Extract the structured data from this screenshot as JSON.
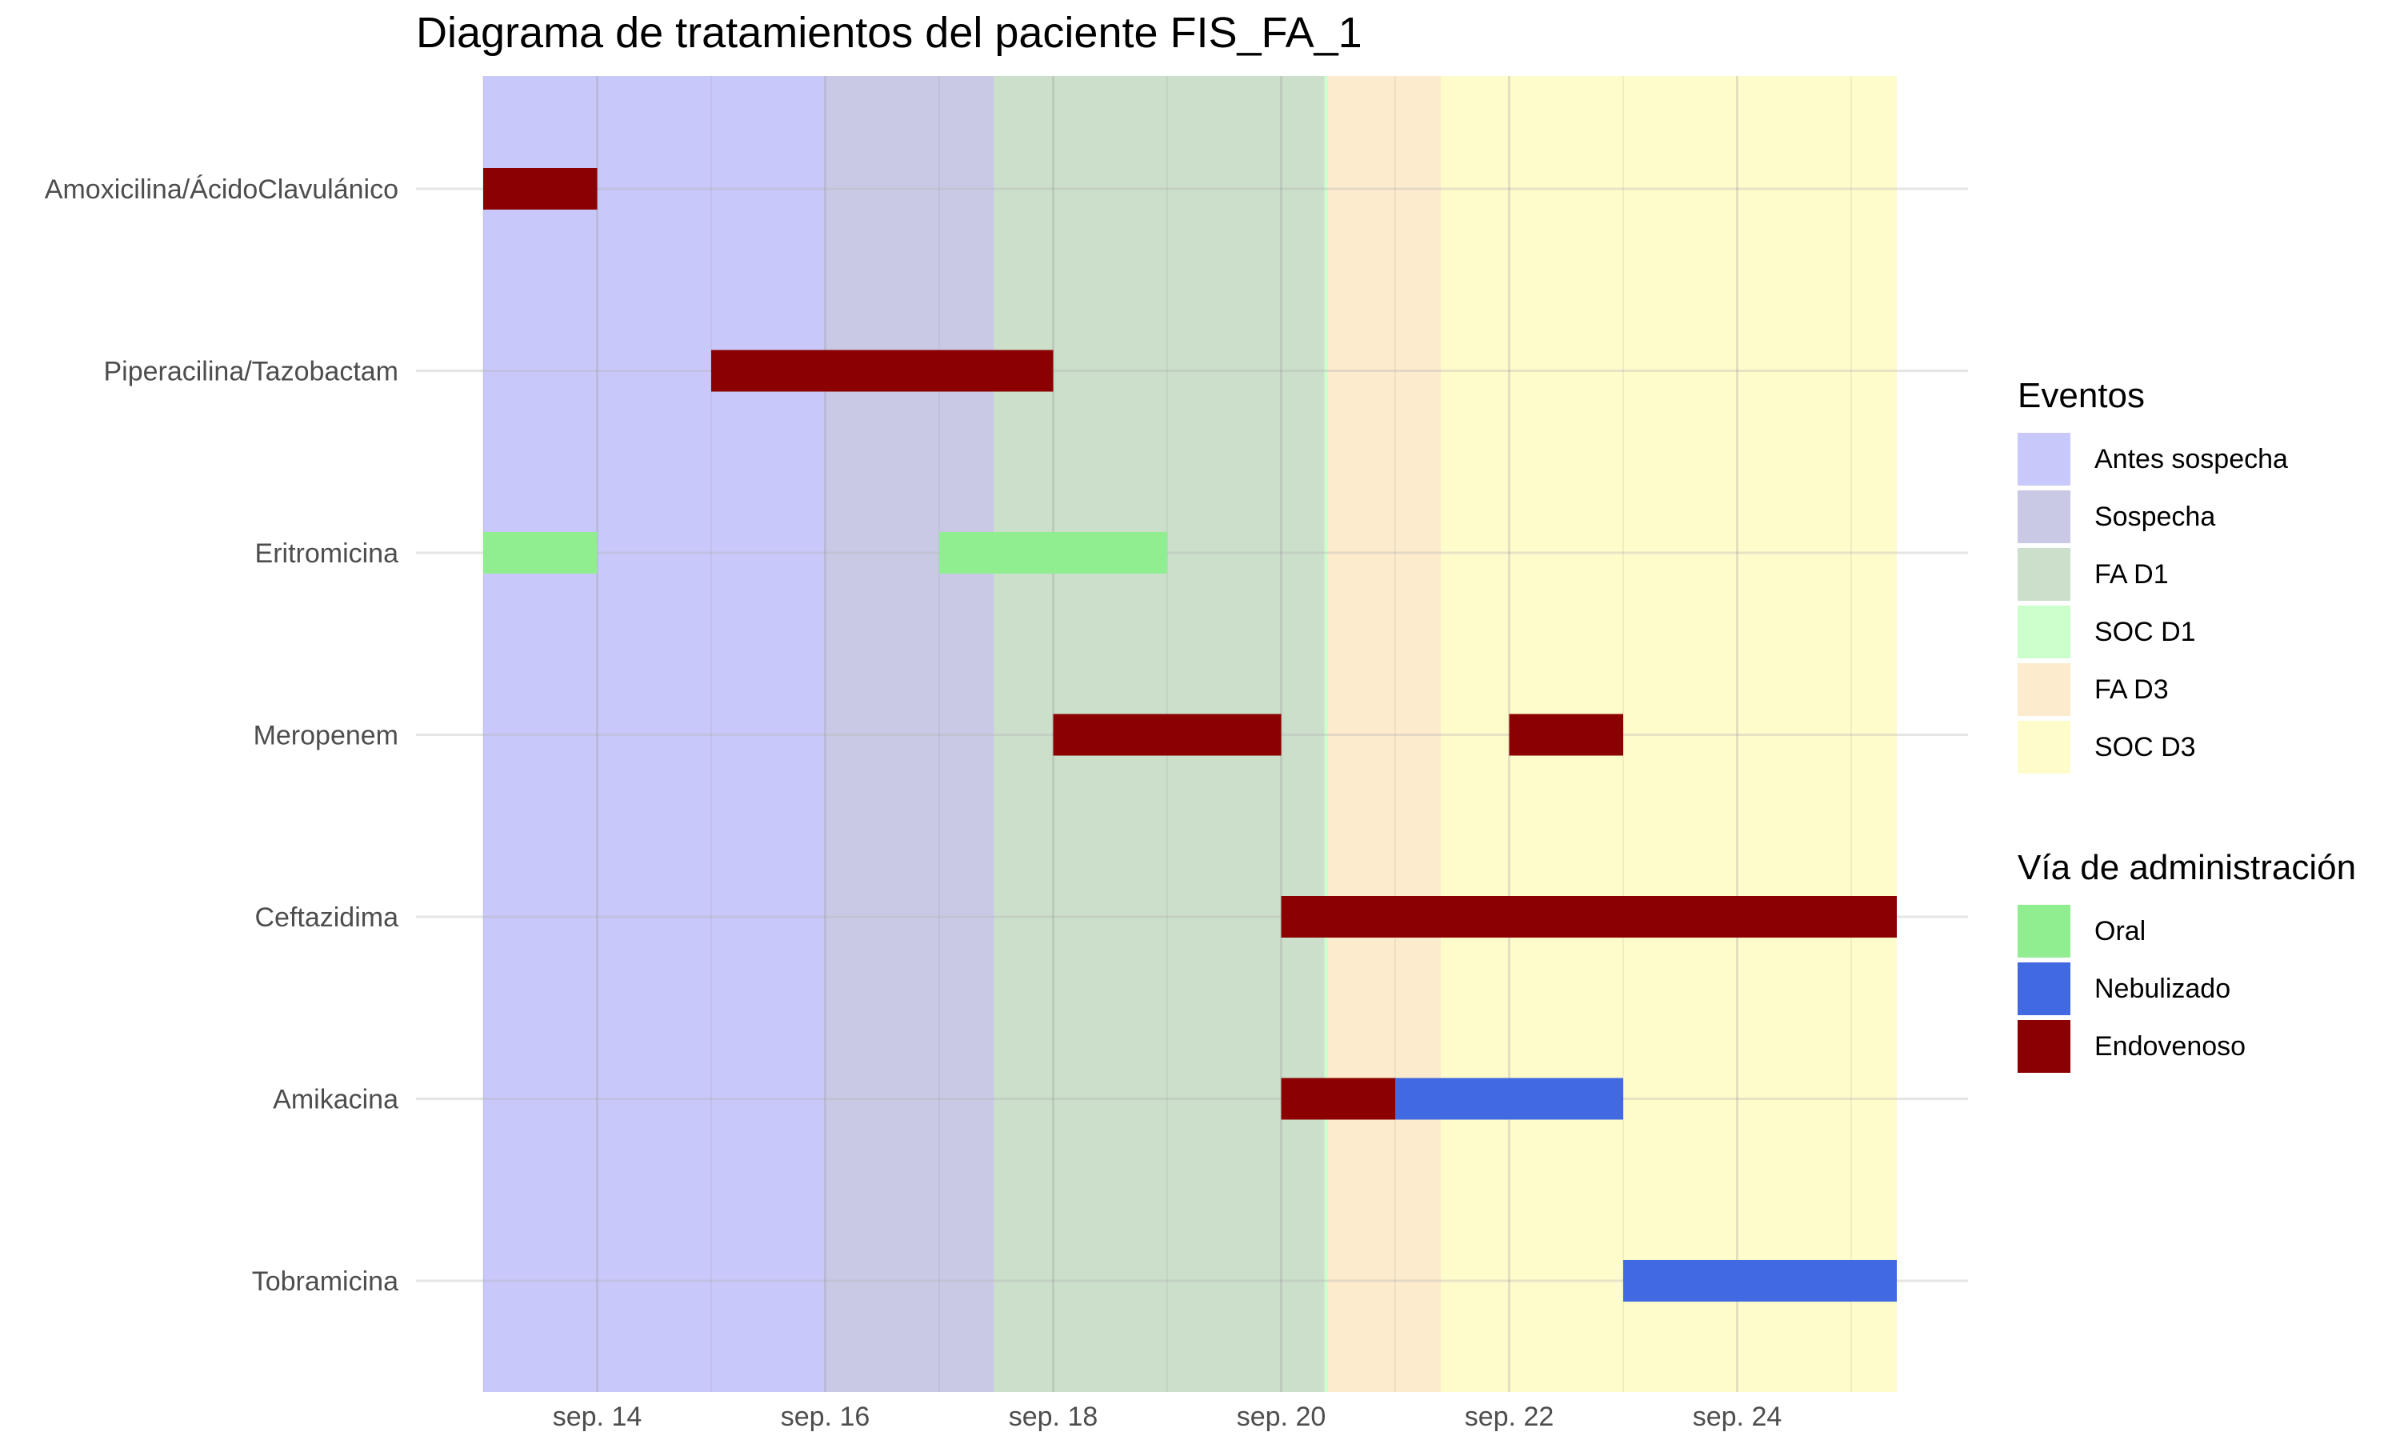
{
  "chart_data": {
    "type": "gantt",
    "title": "Diagrama de tratamientos del paciente FIS_FA_1",
    "x_axis": {
      "unit": "day of September",
      "range": [
        13.0,
        25.4
      ],
      "ticks": [
        {
          "value": 14,
          "label": "sep. 14"
        },
        {
          "value": 16,
          "label": "sep. 16"
        },
        {
          "value": 18,
          "label": "sep. 18"
        },
        {
          "value": 20,
          "label": "sep. 20"
        },
        {
          "value": 22,
          "label": "sep. 22"
        },
        {
          "value": 24,
          "label": "sep. 24"
        }
      ]
    },
    "categories": [
      "Amoxicilina/ÁcidoClavulánico",
      "Piperacilina/Tazobactam",
      "Eritromicina",
      "Meropenem",
      "Ceftazidima",
      "Amikacina",
      "Tobramicina"
    ],
    "events": [
      {
        "name": "Antes sospecha",
        "start": 13.0,
        "end": 16.0,
        "color": "#c8c8fa"
      },
      {
        "name": "Sospecha",
        "start": 16.0,
        "end": 17.48,
        "color": "#c9c9e6"
      },
      {
        "name": "FA D1",
        "start": 17.48,
        "end": 20.38,
        "color": "#cbdfcb"
      },
      {
        "name": "SOC D1",
        "start": 20.38,
        "end": 20.41,
        "color": "#ccffcc"
      },
      {
        "name": "FA D3",
        "start": 20.41,
        "end": 21.4,
        "color": "#fcebcc"
      },
      {
        "name": "SOC D3",
        "start": 21.4,
        "end": 25.4,
        "color": "#fffccc"
      }
    ],
    "routes": [
      {
        "name": "Oral",
        "color": "#90ee90"
      },
      {
        "name": "Nebulizado",
        "color": "#4169e1"
      },
      {
        "name": "Endovenoso",
        "color": "#8b0000"
      }
    ],
    "treatments": [
      {
        "drug": "Amoxicilina/ÁcidoClavulánico",
        "route": "Endovenoso",
        "start": 13.0,
        "end": 14.0
      },
      {
        "drug": "Piperacilina/Tazobactam",
        "route": "Endovenoso",
        "start": 15.0,
        "end": 18.0
      },
      {
        "drug": "Eritromicina",
        "route": "Oral",
        "start": 13.0,
        "end": 14.0
      },
      {
        "drug": "Eritromicina",
        "route": "Oral",
        "start": 17.0,
        "end": 19.0
      },
      {
        "drug": "Meropenem",
        "route": "Endovenoso",
        "start": 18.0,
        "end": 20.0
      },
      {
        "drug": "Meropenem",
        "route": "Endovenoso",
        "start": 22.0,
        "end": 23.0
      },
      {
        "drug": "Ceftazidima",
        "route": "Endovenoso",
        "start": 20.0,
        "end": 25.4
      },
      {
        "drug": "Amikacina",
        "route": "Endovenoso",
        "start": 20.0,
        "end": 21.0
      },
      {
        "drug": "Amikacina",
        "route": "Nebulizado",
        "start": 21.0,
        "end": 23.0
      },
      {
        "drug": "Tobramicina",
        "route": "Nebulizado",
        "start": 23.0,
        "end": 25.4
      }
    ]
  },
  "legend": {
    "events_title": "Eventos",
    "routes_title": "Vía de administración"
  }
}
